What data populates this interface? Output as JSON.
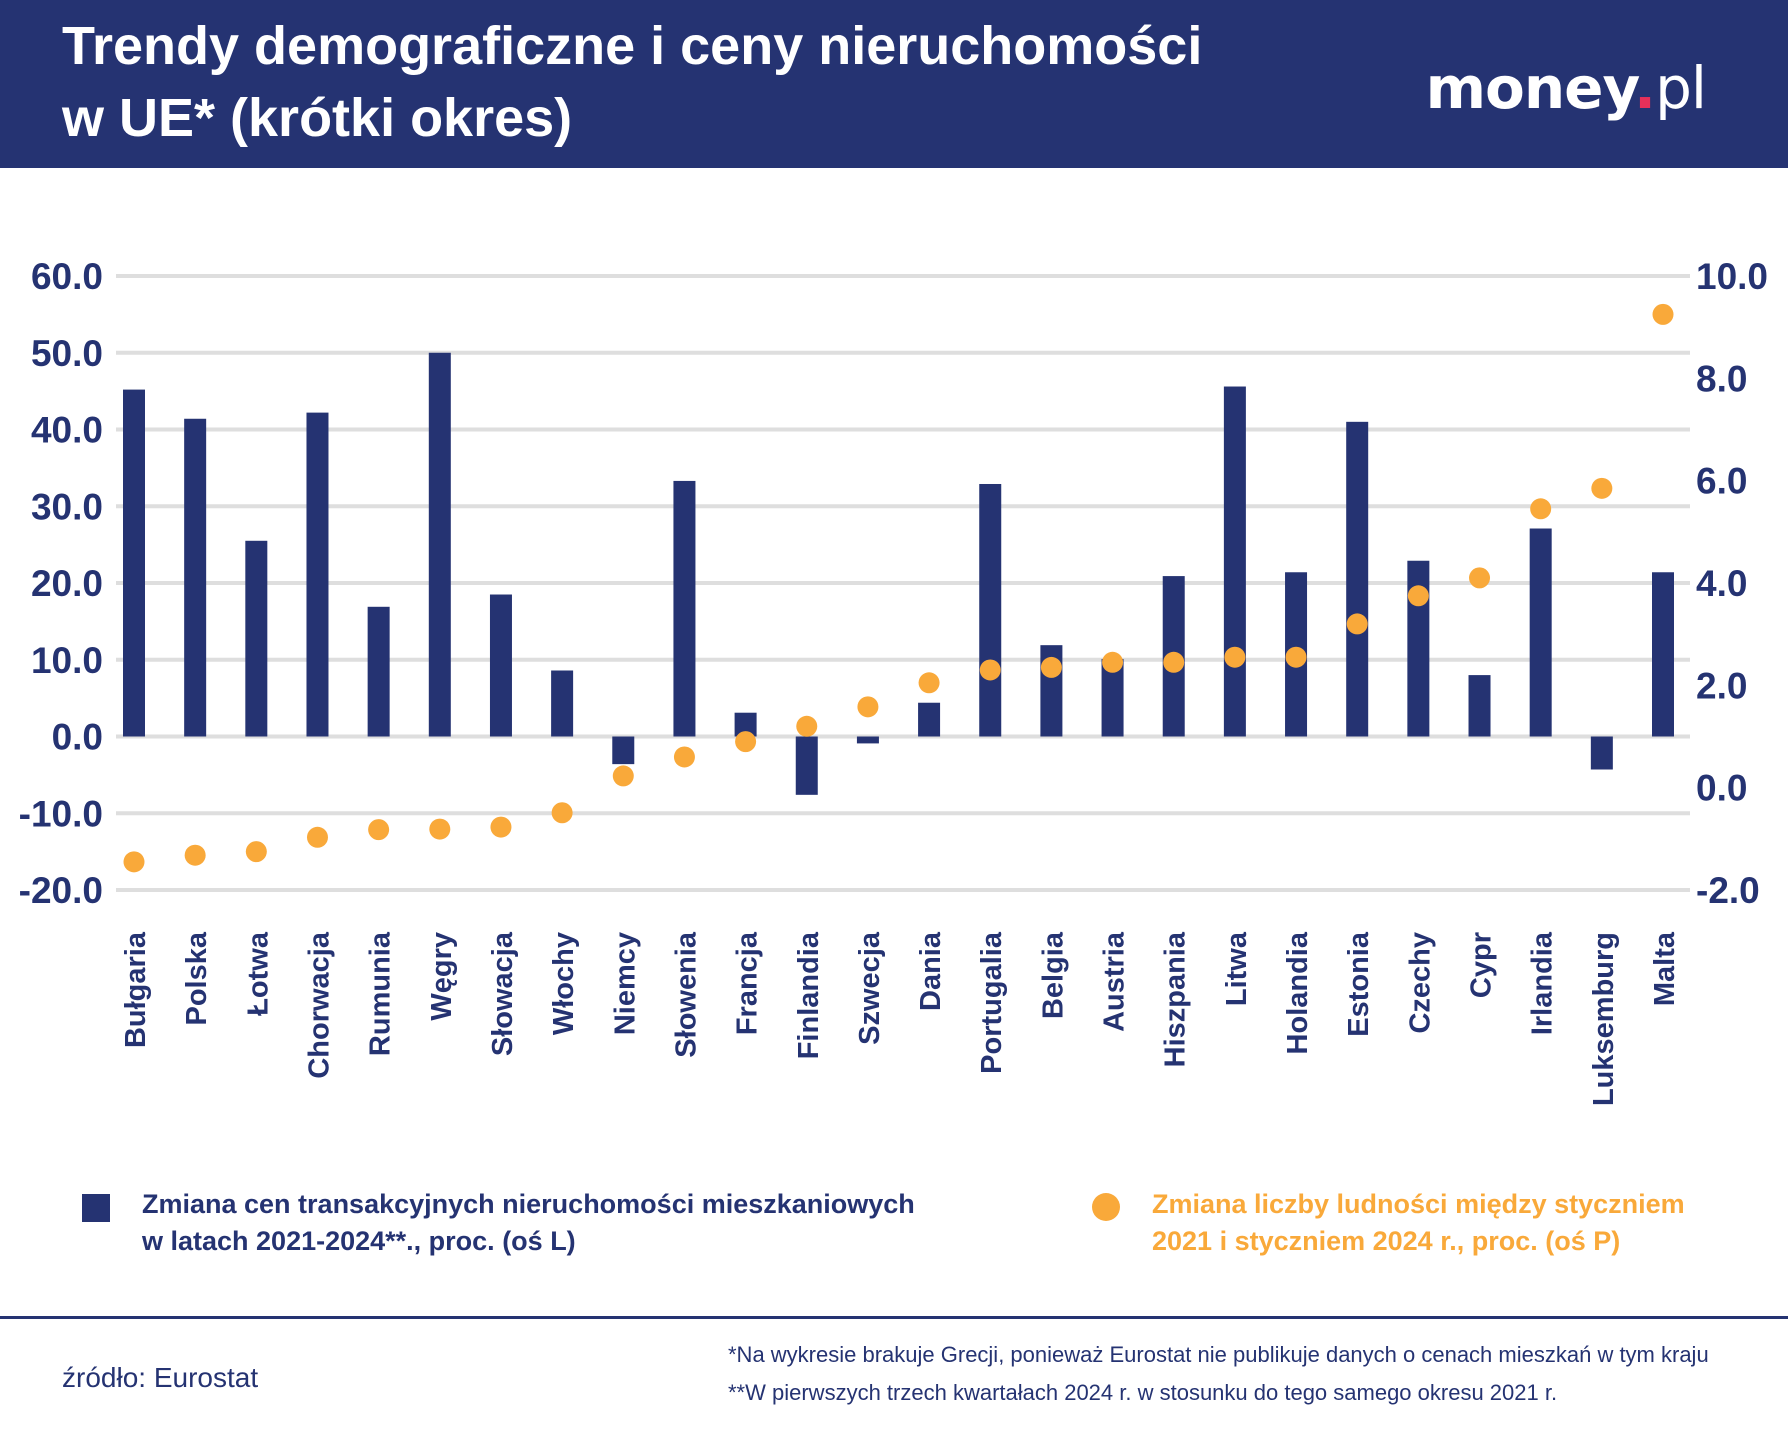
{
  "header": {
    "title_line1": "Trendy demograficzne i ceny nieruchomości",
    "title_line2": "w UE* (krótki okres)",
    "logo_main": "money",
    "logo_dot": ".",
    "logo_tld": "pl"
  },
  "colors": {
    "header_bg": "#253372",
    "bar": "#253372",
    "dot": "#f9a93a",
    "grid": "#dedede",
    "text": "#253372",
    "logo_accent": "#e6305a"
  },
  "chart_data": {
    "type": "bar",
    "title": "Trendy demograficzne i ceny nieruchomości w UE* (krótki okres)",
    "categories": [
      "Bułgaria",
      "Polska",
      "Łotwa",
      "Chorwacja",
      "Rumunia",
      "Węgry",
      "Słowacja",
      "Włochy",
      "Niemcy",
      "Słowenia",
      "Francja",
      "Finlandia",
      "Szwecja",
      "Dania",
      "Portugalia",
      "Belgia",
      "Austria",
      "Hiszpania",
      "Litwa",
      "Holandia",
      "Estonia",
      "Czechy",
      "Cypr",
      "Irlandia",
      "Luksemburg",
      "Malta"
    ],
    "y_left": {
      "ylim": [
        -20,
        60
      ],
      "ticks": [
        "60.0",
        "50.0",
        "40.0",
        "30.0",
        "20.0",
        "10.0",
        "0.0",
        "-10.0",
        "-20.0"
      ],
      "tick_values": [
        60,
        50,
        40,
        30,
        20,
        10,
        0,
        -10,
        -20
      ]
    },
    "y_right": {
      "ylim": [
        -2,
        10
      ],
      "ticks": [
        "10.0",
        "8.0",
        "6.0",
        "4.0",
        "2.0",
        "0.0",
        "-2.0"
      ],
      "tick_values": [
        10,
        8,
        6,
        4,
        2,
        0,
        -2
      ]
    },
    "grid": true,
    "legend_position": "bottom",
    "series": [
      {
        "name": "Zmiana cen transakcyjnych nieruchomości mieszkaniowych w latach 2021-2024**., proc. (oś L)",
        "type": "bar",
        "axis": "left",
        "values": [
          45.2,
          41.4,
          25.5,
          42.2,
          16.9,
          50.0,
          18.5,
          8.6,
          -3.6,
          33.3,
          3.1,
          -7.6,
          -0.9,
          4.4,
          32.9,
          11.9,
          10.1,
          20.9,
          45.6,
          21.4,
          41.0,
          22.9,
          8.0,
          27.1,
          -4.3,
          21.4
        ]
      },
      {
        "name": "Zmiana liczby ludności między styczniem 2021 i styczniem 2024 r., proc. (oś P)",
        "type": "scatter",
        "axis": "right",
        "values": [
          -1.45,
          -1.32,
          -1.25,
          -0.97,
          -0.82,
          -0.81,
          -0.77,
          -0.49,
          0.23,
          0.6,
          0.9,
          1.2,
          1.58,
          2.05,
          2.3,
          2.35,
          2.45,
          2.45,
          2.55,
          2.55,
          3.2,
          3.75,
          4.1,
          5.45,
          5.85,
          9.25
        ]
      }
    ]
  },
  "legend": {
    "bars_line1": "Zmiana cen transakcyjnych nieruchomości mieszkaniowych",
    "bars_line2": "w latach 2021-2024**., proc. (oś L)",
    "dots_line1": "Zmiana liczby ludności między styczniem",
    "dots_line2": "2021 i styczniem 2024 r., proc. (oś P)"
  },
  "footer": {
    "source": "źródło: Eurostat",
    "note1": "*Na wykresie brakuje Grecji, ponieważ Eurostat nie publikuje danych o cenach mieszkań w tym kraju",
    "note2": "**W pierwszych trzech kwartałach 2024 r. w stosunku do tego samego okresu 2021 r."
  }
}
